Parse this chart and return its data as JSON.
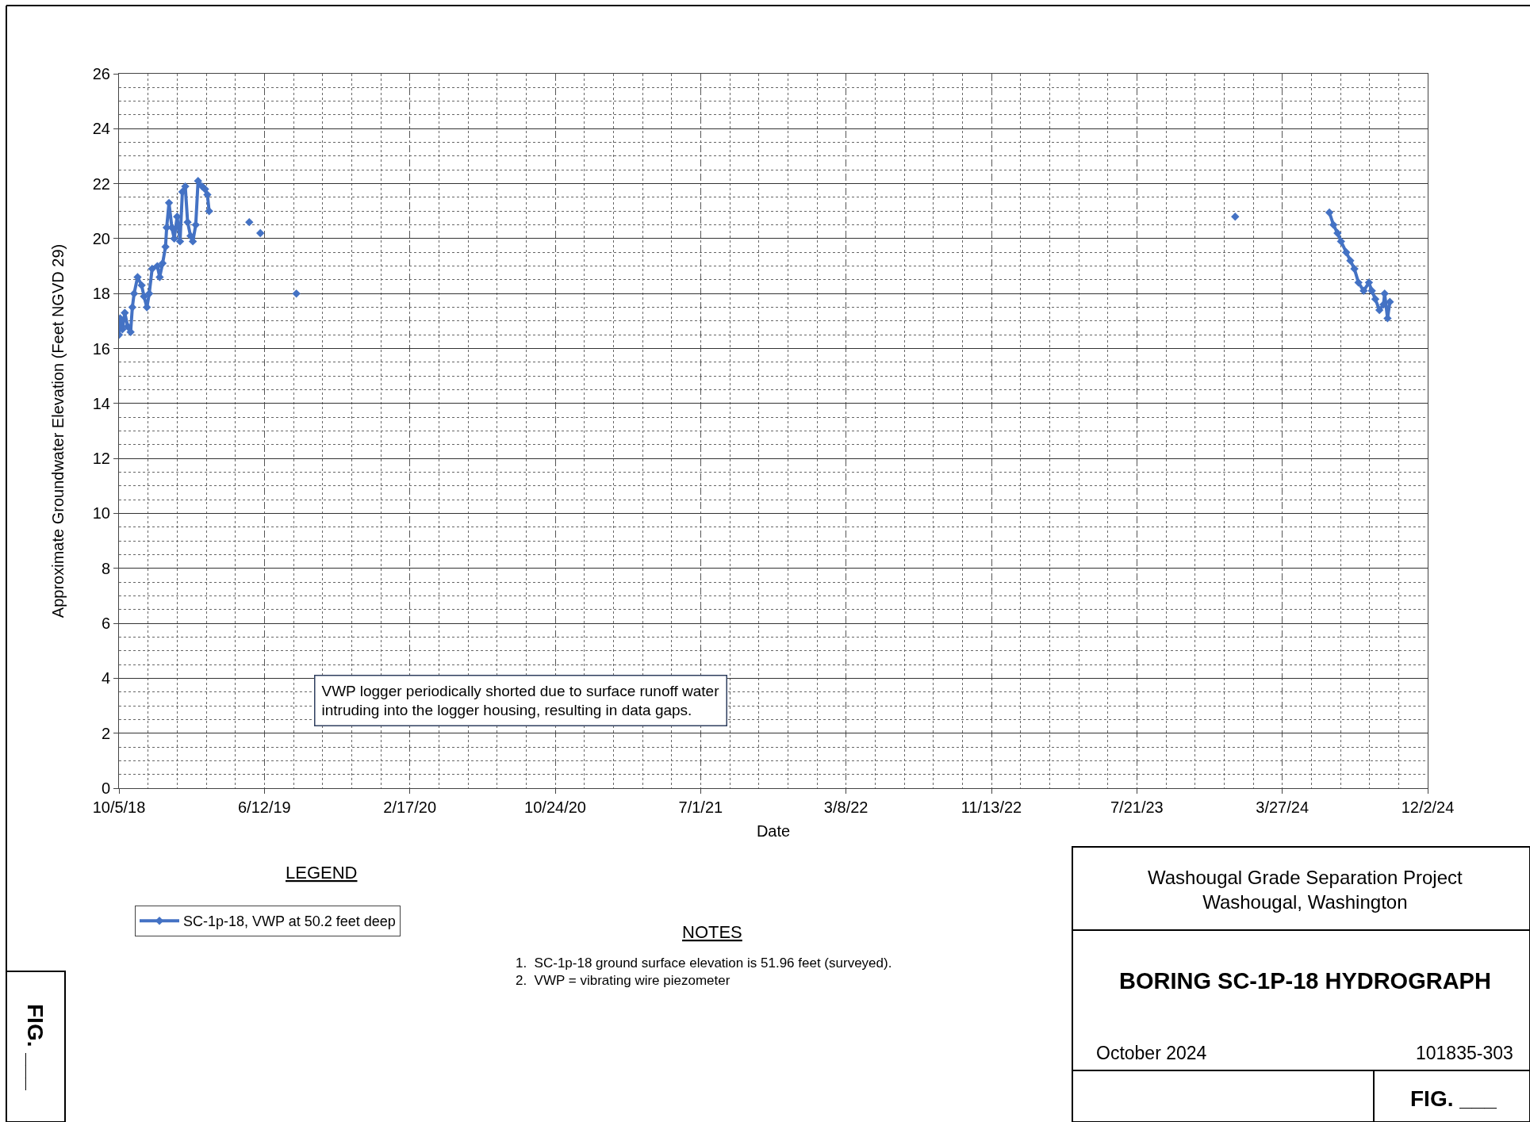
{
  "chart_data": {
    "type": "line",
    "title": "BORING SC-1P-18 HYDROGRAPH",
    "subtitle": "Washougal Grade Separation Project\nWashougal, Washington",
    "xlabel": "Date",
    "ylabel": "Approximate Groundwater Elevation (Feet NGVD 29)",
    "legend_title": "LEGEND",
    "annotations": [
      "VWP logger periodically shorted due to surface runoff water\nintruding into the logger housing, resulting in data gaps.",
      "NOTES",
      "1.  SC-1p-18 ground surface elevation is 51.96 feet (surveyed).",
      "2.  VWP = vibrating wire piezometer",
      "October 2024",
      "101835-303",
      "FIG. ___",
      "FIG. ___"
    ],
    "series": [
      {
        "name": "SC-1p-18, VWP at 50.2 feet deep",
        "color": "#4472c4",
        "x": [
          "2018-10-05",
          "2018-10-07",
          "2018-10-11",
          "2018-10-15",
          "2018-10-20",
          "2018-10-25",
          "2018-10-28",
          "2018-10-31",
          "2018-11-06",
          "2018-11-13",
          "2018-11-17",
          "2018-11-22",
          "2018-11-26",
          "2018-12-01",
          "2018-12-10",
          "2018-12-14",
          "2018-12-19",
          "2018-12-24",
          "2018-12-26",
          "2018-12-30",
          "2019-01-04",
          "2019-01-08",
          "2019-01-13",
          "2019-01-18",
          "2019-01-22",
          "2019-01-27",
          "2019-01-31",
          "2019-02-05",
          "2019-02-09",
          "2019-02-14",
          "2019-02-18",
          "2019-02-25",
          "2019-03-02",
          "2019-03-06",
          "2019-03-09",
          "2019-04-15",
          "2019-05-17",
          "2019-05-25",
          "2019-06-05",
          "2019-07-01",
          "2019-08-06",
          "2019-10-01",
          "2024-01-06",
          "2024-04-01",
          "2024-06-16",
          "2024-06-23",
          "2024-06-30",
          "2024-07-06",
          "2024-07-15",
          "2024-07-22",
          "2024-07-29",
          "2024-08-05",
          "2024-08-14",
          "2024-08-23",
          "2024-08-28",
          "2024-09-03",
          "2024-09-10",
          "2024-09-17",
          "2024-09-19",
          "2024-09-24",
          "2024-09-28"
        ],
        "values": [
          16.5,
          17.1,
          16.7,
          17.3,
          16.8,
          16.6,
          17.5,
          18.0,
          18.6,
          18.3,
          17.9,
          17.5,
          18.0,
          18.9,
          19.0,
          18.6,
          19.1,
          19.7,
          20.4,
          21.3,
          20.4,
          20.0,
          20.8,
          19.9,
          21.7,
          21.9,
          20.6,
          20.1,
          19.9,
          20.5,
          22.1,
          21.9,
          21.8,
          21.6,
          21.0,
          null,
          20.6,
          null,
          20.2,
          null,
          18.0,
          null,
          20.8,
          null,
          20.95,
          20.5,
          20.2,
          19.9,
          19.5,
          19.2,
          18.9,
          18.4,
          18.1,
          18.4,
          18.1,
          17.8,
          17.4,
          17.6,
          18.0,
          17.1,
          17.7
        ]
      }
    ],
    "marker": "diamond",
    "line_style": "solid",
    "grid": true,
    "legend": "bottom left",
    "xlim": [
      "2018-10-05",
      "2024-12-02"
    ],
    "xticks": [
      {
        "value": "2018-10-05",
        "label": "10/5/18"
      },
      {
        "value": "2019-06-12",
        "label": "6/12/19"
      },
      {
        "value": "2020-02-17",
        "label": "2/17/20"
      },
      {
        "value": "2020-10-24",
        "label": "10/24/20"
      },
      {
        "value": "2021-07-01",
        "label": "7/1/21"
      },
      {
        "value": "2022-03-08",
        "label": "3/8/22"
      },
      {
        "value": "2022-11-13",
        "label": "11/13/22"
      },
      {
        "value": "2023-07-21",
        "label": "7/21/23"
      },
      {
        "value": "2024-03-27",
        "label": "3/27/24"
      },
      {
        "value": "2024-12-02",
        "label": "12/2/24"
      }
    ],
    "ylim": [
      0,
      26
    ],
    "yticks": [
      0,
      2,
      4,
      6,
      8,
      10,
      12,
      14,
      16,
      18,
      20,
      22,
      24,
      26
    ]
  }
}
